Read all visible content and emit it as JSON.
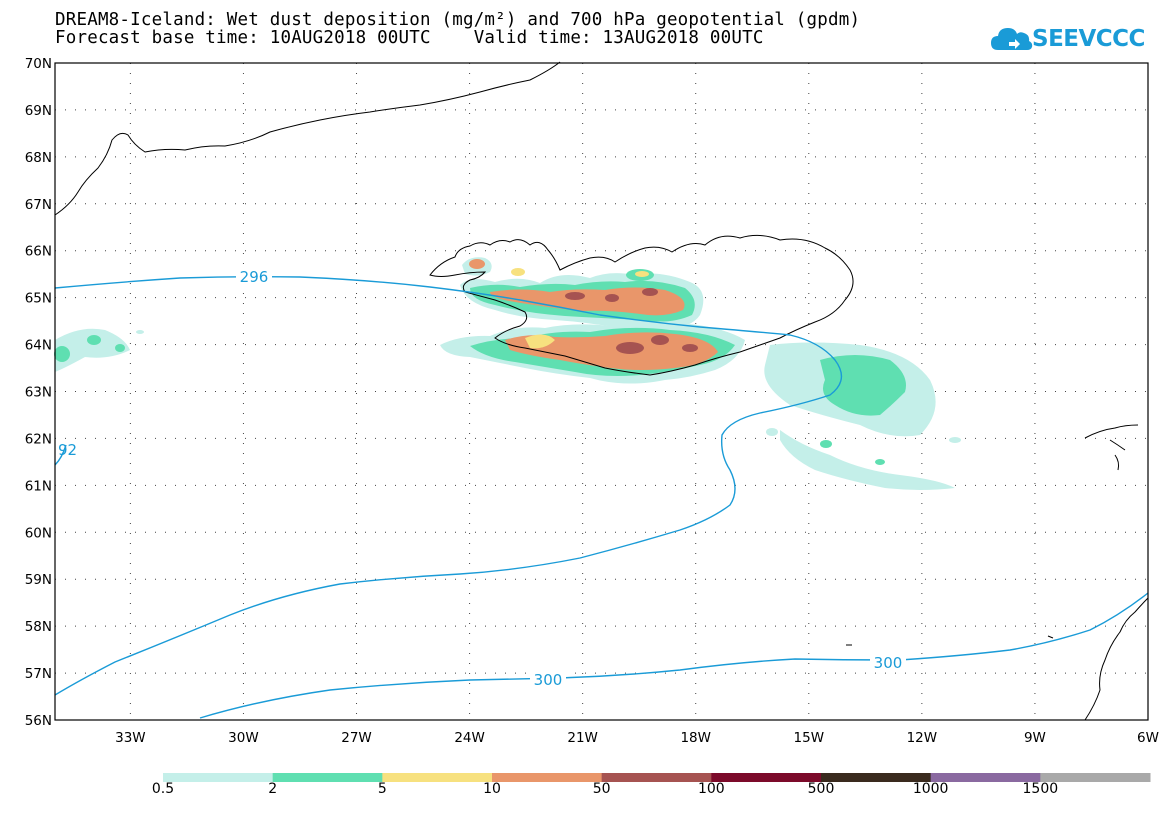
{
  "title": {
    "line1": "DREAM8-Iceland: Wet dust deposition (mg/m²) and 700 hPa geopotential (gpdm)",
    "line2": "Forecast base time: 10AUG2018 00UTC    Valid time: 13AUG2018 00UTC"
  },
  "logo": {
    "text": "SEEVCCC",
    "icon": "cloud-icon",
    "color": "#1a9bd7"
  },
  "map": {
    "lat_labels": [
      "56N",
      "57N",
      "58N",
      "59N",
      "60N",
      "61N",
      "62N",
      "63N",
      "64N",
      "65N",
      "66N",
      "67N",
      "68N",
      "69N",
      "70N"
    ],
    "lon_labels": [
      "33W",
      "30W",
      "27W",
      "24W",
      "21W",
      "18W",
      "15W",
      "12W",
      "9W",
      "6W"
    ],
    "lat_range": [
      56,
      70
    ],
    "lon_range": [
      -35,
      -6
    ],
    "grid": "dotted"
  },
  "contours": {
    "color": "#1a9bd7",
    "labels": [
      "296",
      "300",
      "300",
      "92"
    ]
  },
  "colorbar": {
    "colors": [
      "#c4efe9",
      "#5fdfb1",
      "#f7e17f",
      "#e9966a",
      "#a65351",
      "#7c0a2a",
      "#3a2a1e",
      "#8a69a0",
      "#a9a9a9"
    ],
    "labels": [
      "0.5",
      "2",
      "5",
      "10",
      "50",
      "100",
      "500",
      "1000",
      "1500"
    ]
  }
}
